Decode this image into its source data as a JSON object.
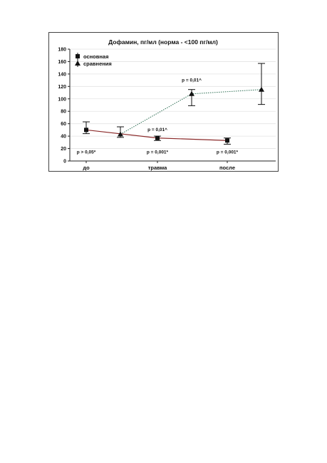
{
  "chart_data": {
    "type": "line",
    "title": "Дофамин, пг/мл (норма - <100 пг/мл)",
    "xlabel": "",
    "ylabel": "",
    "ylim": [
      0,
      180
    ],
    "yticks": [
      0,
      20,
      40,
      60,
      80,
      100,
      120,
      140,
      160,
      180
    ],
    "categories": [
      "до",
      "травма",
      "после"
    ],
    "grid": true,
    "legend_position": "top-left",
    "series": [
      {
        "name": "основная",
        "marker": "square",
        "line_style": "solid",
        "color": "#8b2a2a",
        "values": [
          50,
          37,
          33
        ],
        "error_low": [
          44,
          33,
          27
        ],
        "error_high": [
          63,
          40,
          37
        ]
      },
      {
        "name": "сравнения",
        "marker": "triangle",
        "line_style": "dotted",
        "color": "#2f6f55",
        "values": [
          43,
          108,
          115
        ],
        "error_low": [
          38,
          89,
          91
        ],
        "error_high": [
          55,
          115,
          157
        ]
      }
    ],
    "annotations": [
      {
        "text": "p > 0,05*",
        "category": "до",
        "y": 12
      },
      {
        "text": "p = 0,01^",
        "category": "травма",
        "y": 48
      },
      {
        "text": "p = 0,001*",
        "category": "травма",
        "y": 12
      },
      {
        "text": "p = 0,01^",
        "category": "травма",
        "y": 128
      },
      {
        "text": "p = 0,001*",
        "category": "после",
        "y": 12
      }
    ]
  }
}
